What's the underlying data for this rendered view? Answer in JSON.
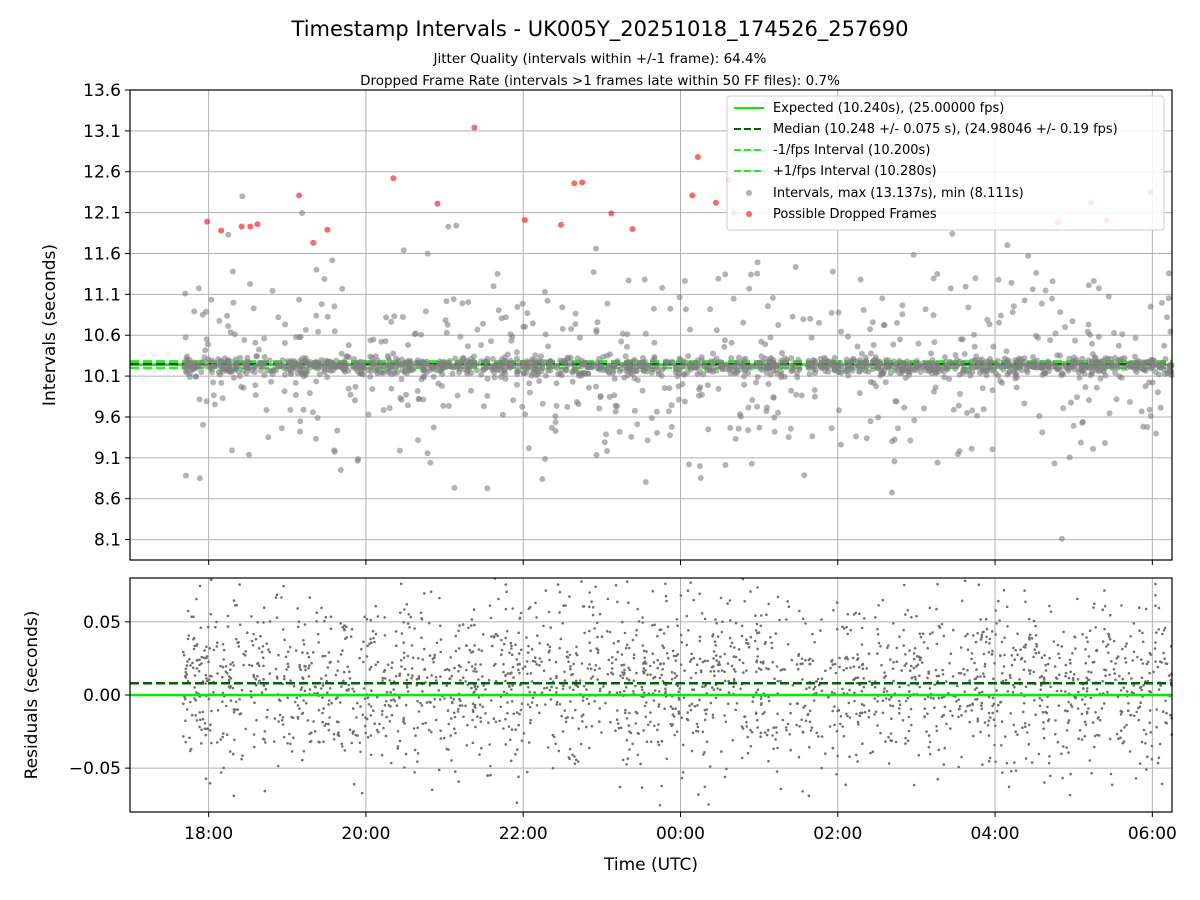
{
  "chart_data": [
    {
      "type": "scatter",
      "title": "Timestamp Intervals - UK005Y_20251018_174526_257690",
      "subtitle_lines": [
        "Jitter Quality (intervals within +/-1 frame): 64.4%",
        "Dropped Frame Rate (intervals >1 frames late within 50 FF files): 0.7%"
      ],
      "xlabel": "",
      "ylabel": "Intervals (seconds)",
      "x_unit": "hours since 00:00 UTC (negative = previous day)",
      "xlim": [
        -7.0,
        6.25
      ],
      "ylim": [
        7.85,
        13.6
      ],
      "yticks": [
        8.1,
        8.6,
        9.1,
        9.6,
        10.1,
        10.6,
        11.1,
        11.6,
        12.1,
        12.6,
        13.1,
        13.6
      ],
      "ytick_labels": [
        "8.1",
        "8.6",
        "9.1",
        "9.6",
        "10.1",
        "10.6",
        "11.1",
        "11.6",
        "12.1",
        "12.6",
        "13.1",
        "13.6"
      ],
      "grid": true,
      "legend_position": "top-right",
      "reference_lines": [
        {
          "name": "Expected (10.240s), (25.00000 fps)",
          "y": 10.24,
          "color": "#00ee00",
          "style": "solid"
        },
        {
          "name": "Median (10.248 +/- 0.075 s), (24.98046 +/- 0.19 fps)",
          "y": 10.248,
          "color": "#006400",
          "style": "dashed"
        },
        {
          "name": "-1/fps Interval (10.200s)",
          "y": 10.2,
          "color": "#22ee22",
          "style": "dashed"
        },
        {
          "name": "+1/fps Interval (10.280s)",
          "y": 10.28,
          "color": "#22ee22",
          "style": "dashed"
        }
      ],
      "series": [
        {
          "name": "Intervals, max (13.137s), min (8.111s)",
          "color": "#808080",
          "x_range": [
            -6.33,
            6.25
          ],
          "core_band": [
            10.0,
            10.45
          ],
          "outlier_count": 460
        },
        {
          "name": "Possible Dropped Frames",
          "color": "#ff0000",
          "points": [
            {
              "x": -6.02,
              "y": 11.99
            },
            {
              "x": -5.84,
              "y": 11.88
            },
            {
              "x": -5.58,
              "y": 11.93
            },
            {
              "x": -5.47,
              "y": 11.93
            },
            {
              "x": -5.38,
              "y": 11.96
            },
            {
              "x": -4.85,
              "y": 12.31
            },
            {
              "x": -4.67,
              "y": 11.73
            },
            {
              "x": -4.49,
              "y": 11.89
            },
            {
              "x": -3.65,
              "y": 12.52
            },
            {
              "x": -3.09,
              "y": 12.21
            },
            {
              "x": -2.62,
              "y": 13.14
            },
            {
              "x": -1.98,
              "y": 12.01
            },
            {
              "x": -1.52,
              "y": 11.95
            },
            {
              "x": -1.35,
              "y": 12.46
            },
            {
              "x": -1.25,
              "y": 12.47
            },
            {
              "x": -0.88,
              "y": 12.09
            },
            {
              "x": -0.61,
              "y": 11.9
            },
            {
              "x": 0.22,
              "y": 12.78
            },
            {
              "x": 0.15,
              "y": 12.31
            },
            {
              "x": 0.45,
              "y": 12.22
            },
            {
              "x": 0.62,
              "y": 12.5
            },
            {
              "x": 0.68,
              "y": 12.1
            },
            {
              "x": 4.8,
              "y": 11.98
            },
            {
              "x": 5.22,
              "y": 12.22
            },
            {
              "x": 5.42,
              "y": 12.0
            },
            {
              "x": 5.98,
              "y": 12.35
            }
          ]
        }
      ]
    },
    {
      "type": "scatter",
      "xlabel": "Time (UTC)",
      "ylabel": "Residuals (seconds)",
      "xlim": [
        -7.0,
        6.25
      ],
      "ylim": [
        -0.08,
        0.08
      ],
      "yticks": [
        -0.05,
        0.0,
        0.05
      ],
      "ytick_labels": [
        "−0.05",
        "0.00",
        "0.05"
      ],
      "xticks": [
        -6,
        -4,
        -2,
        0,
        2,
        4,
        6
      ],
      "xtick_labels": [
        "18:00",
        "20:00",
        "22:00",
        "00:00",
        "02:00",
        "04:00",
        "06:00"
      ],
      "grid": true,
      "reference_lines": [
        {
          "y": 0.0,
          "color": "#00ee00",
          "style": "solid"
        },
        {
          "y": 0.008,
          "color": "#006400",
          "style": "dashed"
        }
      ],
      "series": [
        {
          "color": "#707070",
          "x_range": [
            -6.33,
            6.25
          ],
          "point_count": 2300
        }
      ]
    }
  ]
}
